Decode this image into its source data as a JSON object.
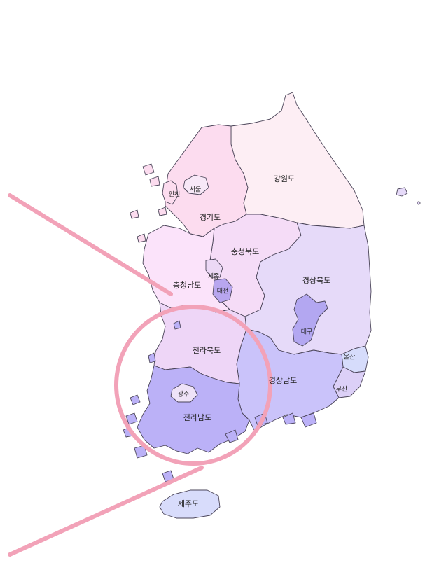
{
  "map": {
    "regions": [
      {
        "id": "gangwon",
        "label": "강원도",
        "color": "#fdeef4"
      },
      {
        "id": "gyeonggi",
        "label": "경기도",
        "color": "#fcdcef"
      },
      {
        "id": "seoul",
        "label": "서울",
        "color": "#f7e8f7"
      },
      {
        "id": "incheon",
        "label": "인천",
        "color": "#fcdcef"
      },
      {
        "id": "chungbuk",
        "label": "충청북도",
        "color": "#f5dcf7"
      },
      {
        "id": "chungnam",
        "label": "충청남도",
        "color": "#fbe3fa"
      },
      {
        "id": "sejong",
        "label": "세종",
        "color": "#ecd8f5"
      },
      {
        "id": "daejeon",
        "label": "대전",
        "color": "#b8a6ef"
      },
      {
        "id": "gyeongbuk",
        "label": "경상북도",
        "color": "#e6daf9"
      },
      {
        "id": "daegu",
        "label": "대구",
        "color": "#b3a7f1"
      },
      {
        "id": "ulsan",
        "label": "울산",
        "color": "#d6dcfb"
      },
      {
        "id": "busan",
        "label": "부산",
        "color": "#dcd0f7"
      },
      {
        "id": "gyeongnam",
        "label": "경상남도",
        "color": "#cac3fa"
      },
      {
        "id": "jeonbuk",
        "label": "전라북도",
        "color": "#eed6f7"
      },
      {
        "id": "jeonnam",
        "label": "전라남도",
        "color": "#bbb1f7"
      },
      {
        "id": "gwangju",
        "label": "광주",
        "color": "#efe3f8"
      },
      {
        "id": "jeju",
        "label": "제주도",
        "color": "#d8dcfb"
      }
    ],
    "annotation_color": "#f2a2b8"
  }
}
